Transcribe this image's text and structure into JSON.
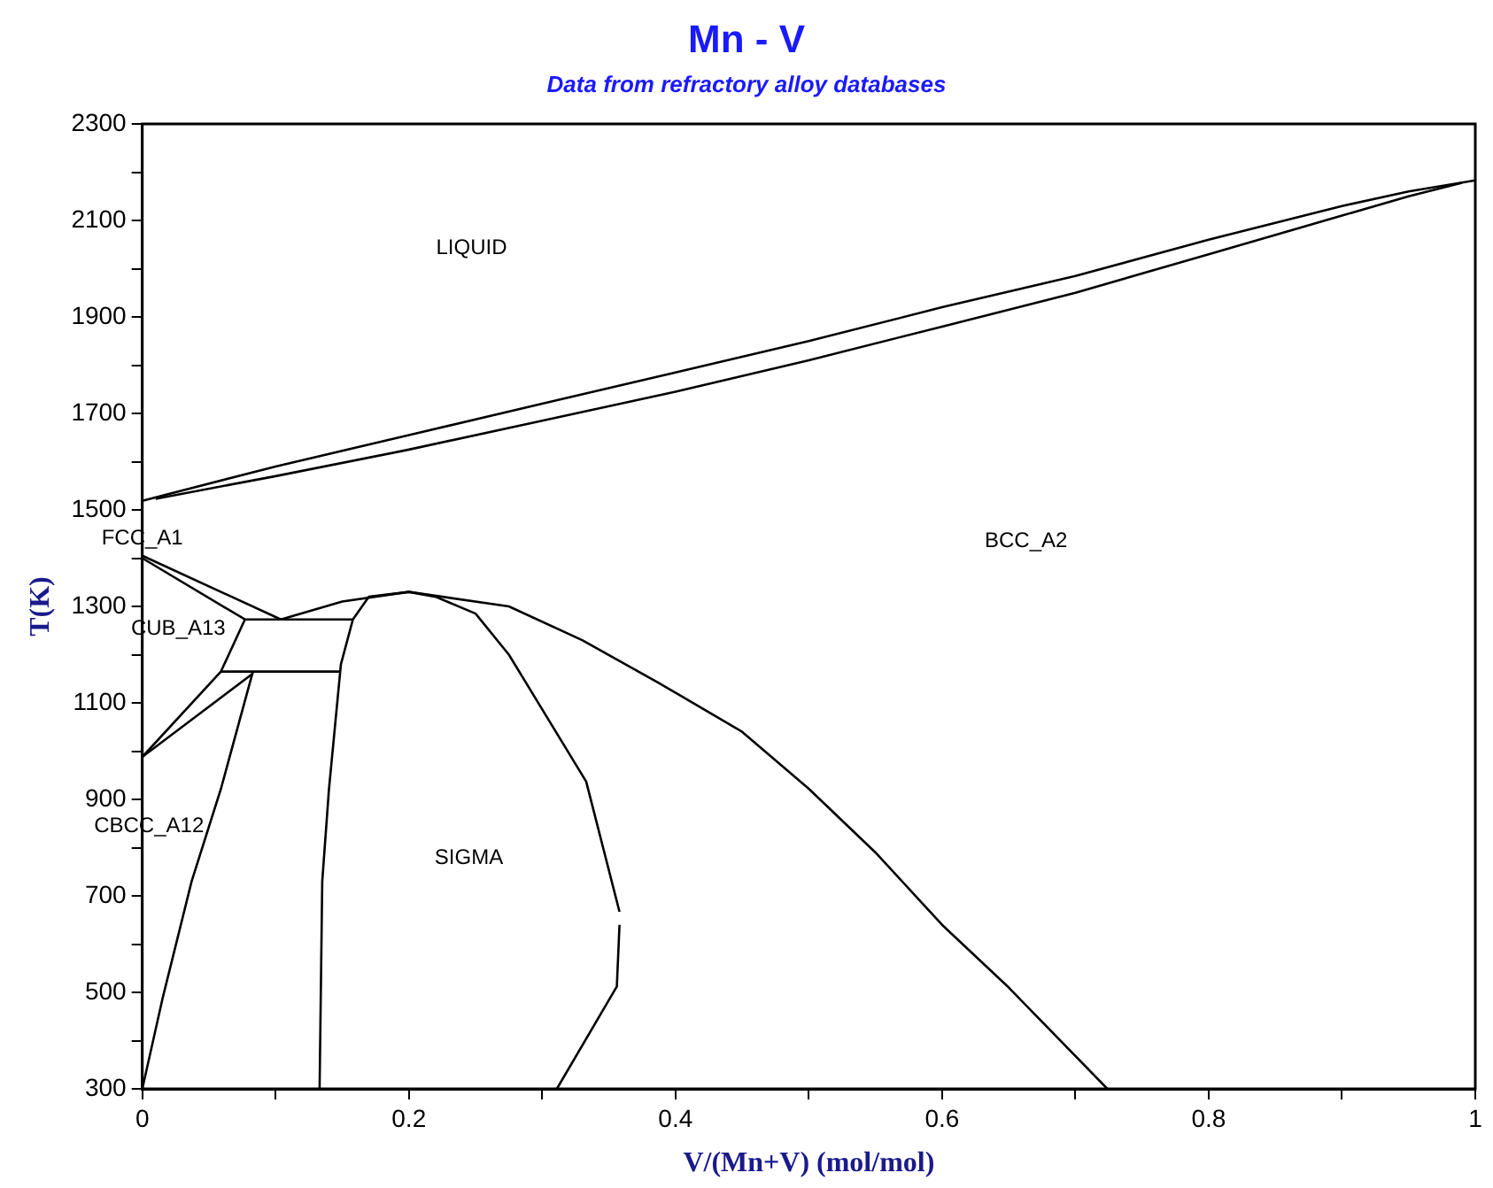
{
  "chart_data": {
    "type": "line",
    "title": "Mn - V",
    "subtitle": "Data from refractory alloy databases",
    "xlabel": "V/(Mn+V) (mol/mol)",
    "ylabel": "T(K)",
    "xlim": [
      0,
      1
    ],
    "xticks": [
      0,
      {
        "value": 0.1,
        "label": null
      },
      0.2,
      {
        "value": 0.3,
        "label": null
      },
      0.4,
      {
        "value": 0.5,
        "label": null
      },
      0.6,
      {
        "value": 0.7,
        "label": null
      },
      0.8,
      {
        "value": 0.9,
        "label": null
      },
      1
    ],
    "ylim": [
      300,
      2300
    ],
    "yticks": [
      300,
      {
        "value": 400,
        "label": null
      },
      500,
      {
        "value": 600,
        "label": null
      },
      700,
      {
        "value": 800,
        "label": null
      },
      900,
      {
        "value": 1000,
        "label": null
      },
      1100,
      {
        "value": 1200,
        "label": null
      },
      1300,
      {
        "value": 1400,
        "label": null
      },
      1500,
      {
        "value": 1600,
        "label": null
      },
      1700,
      {
        "value": 1800,
        "label": null
      },
      1900,
      {
        "value": 2000,
        "label": null
      },
      2100,
      {
        "value": 2200,
        "label": null
      },
      2300
    ],
    "grid": false,
    "legend": false,
    "marker": "none",
    "line_style": "solid",
    "series": [
      {
        "color": "#000000",
        "x": [
          0,
          0.1,
          0.2,
          0.3,
          0.4,
          0.5,
          0.6,
          0.7,
          0.8,
          0.9,
          0.95,
          1
        ],
        "values": [
          1519,
          1590,
          1655,
          1720,
          1785,
          1850,
          1920,
          1985,
          2060,
          2130,
          2160,
          2183
        ]
      },
      {
        "color": "#000000",
        "x": [
          0.01,
          0.1,
          0.2,
          0.3,
          0.4,
          0.5,
          0.6,
          0.7,
          0.8,
          0.9,
          0.95,
          0.99
        ],
        "values": [
          1523,
          1570,
          1625,
          1685,
          1745,
          1810,
          1880,
          1950,
          2030,
          2110,
          2150,
          2178
        ]
      },
      {
        "color": "#000000",
        "x": [
          0,
          0.104
        ],
        "values": [
          1405,
          1273
        ]
      },
      {
        "color": "#000000",
        "x": [
          0,
          0.077
        ],
        "values": [
          1400,
          1273
        ]
      },
      {
        "color": "#000000",
        "x": [
          0.104,
          0.15,
          0.2,
          0.275,
          0.33,
          0.387,
          0.45,
          0.5,
          0.55,
          0.6,
          0.65,
          0.724
        ],
        "values": [
          1273,
          1310,
          1330,
          1300,
          1230,
          1142,
          1040,
          922,
          790,
          640,
          510,
          300
        ]
      },
      {
        "color": "#000000",
        "x": [
          0.133,
          0.135,
          0.14,
          0.149,
          0.158,
          0.17,
          0.2,
          0.22,
          0.25,
          0.275,
          0.333,
          0.358
        ],
        "values": [
          300,
          730,
          920,
          1180,
          1273,
          1320,
          1330,
          1320,
          1285,
          1200,
          937,
          667
        ]
      },
      {
        "color": "#000000",
        "x": [
          0.311,
          0.356,
          0.358
        ],
        "values": [
          300,
          512,
          640
        ]
      },
      {
        "color": "#000000",
        "x": [
          0.077,
          0.158
        ],
        "values": [
          1273,
          1273
        ]
      },
      {
        "color": "#000000",
        "x": [
          0.059,
          0.149
        ],
        "values": [
          1165,
          1165
        ]
      },
      {
        "color": "#000000",
        "x": [
          0,
          0.059,
          0.077
        ],
        "values": [
          988,
          1165,
          1273
        ]
      },
      {
        "color": "#000000",
        "x": [
          0,
          0.083
        ],
        "values": [
          988,
          1161
        ]
      },
      {
        "color": "#000000",
        "x": [
          0,
          0.015,
          0.037,
          0.059,
          0.083
        ],
        "values": [
          300,
          485,
          730,
          922,
          1165
        ]
      }
    ],
    "annotations": [
      "LIQUID",
      "BCC_A2",
      "FCC_A1",
      "CUB_A13",
      "CBCC_A12",
      "SIGMA"
    ]
  }
}
